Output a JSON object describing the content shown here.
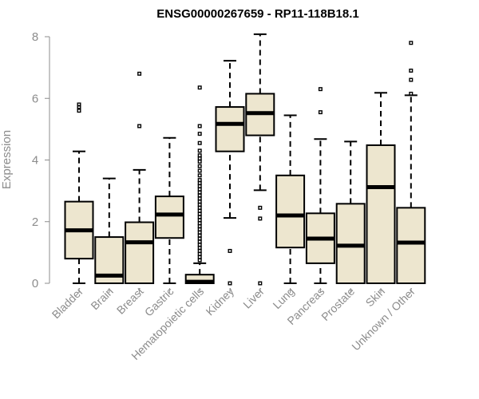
{
  "chart_data": {
    "type": "boxplot",
    "title": "ENSG00000267659 - RP11-118B18.1",
    "xlabel": "",
    "ylabel": "Expression",
    "ylim": [
      0,
      8
    ],
    "yticks": [
      0,
      2,
      4,
      6,
      8
    ],
    "ytick_labels": [
      "0",
      "2",
      "4",
      "6",
      "8"
    ],
    "categories": [
      "Bladder",
      "Brain",
      "Breast",
      "Gastric",
      "Hematopoietic cells",
      "Kidney",
      "Liver",
      "Lung",
      "Pancreas",
      "Prostate",
      "Skin",
      "Unknown / Other"
    ],
    "box_fill": "#ede6cf",
    "boxes": [
      {
        "name": "Bladder",
        "min": 0,
        "q1": 0.8,
        "median": 1.72,
        "q3": 2.65,
        "max": 4.28,
        "outliers": [
          5.6,
          5.72,
          5.8
        ]
      },
      {
        "name": "Brain",
        "min": 0,
        "q1": 0,
        "median": 0.25,
        "q3": 1.5,
        "max": 3.4,
        "outliers": []
      },
      {
        "name": "Breast",
        "min": 0,
        "q1": 0,
        "median": 1.33,
        "q3": 1.98,
        "max": 3.68,
        "outliers": [
          5.1,
          6.8
        ]
      },
      {
        "name": "Gastric",
        "min": 0,
        "q1": 1.47,
        "median": 2.23,
        "q3": 2.82,
        "max": 4.72,
        "outliers": []
      },
      {
        "name": "Hematopoietic cells",
        "min": 0,
        "q1": 0,
        "median": 0.05,
        "q3": 0.28,
        "max": 0.65,
        "outliers": [
          0.75,
          0.85,
          0.95,
          1.05,
          1.15,
          1.25,
          1.35,
          1.45,
          1.55,
          1.65,
          1.75,
          1.85,
          1.95,
          2.05,
          2.15,
          2.25,
          2.35,
          2.45,
          2.55,
          2.65,
          2.75,
          2.85,
          2.95,
          3.05,
          3.15,
          3.25,
          3.35,
          3.5,
          3.65,
          3.8,
          3.95,
          4.05,
          4.15,
          4.3,
          4.55,
          4.85,
          5.1,
          6.35
        ]
      },
      {
        "name": "Kidney",
        "min": 2.12,
        "q1": 4.28,
        "median": 5.17,
        "q3": 5.72,
        "max": 7.22,
        "outliers": [
          0,
          1.05
        ]
      },
      {
        "name": "Liver",
        "min": 3.02,
        "q1": 4.8,
        "median": 5.52,
        "q3": 6.15,
        "max": 8.08,
        "outliers": [
          0,
          2.1,
          2.45
        ]
      },
      {
        "name": "Lung",
        "min": 0,
        "q1": 1.16,
        "median": 2.2,
        "q3": 3.5,
        "max": 5.45,
        "outliers": []
      },
      {
        "name": "Pancreas",
        "min": 0,
        "q1": 0.65,
        "median": 1.45,
        "q3": 2.27,
        "max": 4.68,
        "outliers": [
          5.55,
          6.3
        ]
      },
      {
        "name": "Prostate",
        "min": 0,
        "q1": 0,
        "median": 1.22,
        "q3": 2.58,
        "max": 4.6,
        "outliers": []
      },
      {
        "name": "Skin",
        "min": 0,
        "q1": 0,
        "median": 3.12,
        "q3": 4.48,
        "max": 6.18,
        "outliers": []
      },
      {
        "name": "Unknown / Other",
        "min": 0,
        "q1": 0,
        "median": 1.32,
        "q3": 2.45,
        "max": 6.1,
        "outliers": [
          6.15,
          6.6,
          6.9,
          7.8
        ]
      }
    ]
  }
}
